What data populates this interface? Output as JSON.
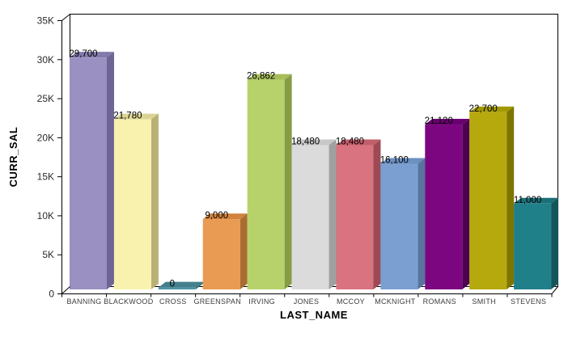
{
  "chart_data": {
    "type": "bar",
    "style": "3d",
    "title": "",
    "xlabel": "LAST_NAME",
    "ylabel": "CURR_SAL",
    "categories": [
      "BANNING",
      "BLACKWOOD",
      "CROSS",
      "GREENSPAN",
      "IRVING",
      "JONES",
      "MCCOY",
      "MCKNIGHT",
      "ROMANS",
      "SMITH",
      "STEVENS"
    ],
    "values": [
      29700,
      21780,
      0,
      9000,
      26862,
      18480,
      18480,
      16100,
      21120,
      22700,
      11000
    ],
    "value_labels": [
      "29,700",
      "21,780",
      "0",
      "9,000",
      "26,862",
      "18,480",
      "18,480",
      "16,100",
      "21,120",
      "22,700",
      "11,000"
    ],
    "ylim": [
      0,
      35000
    ],
    "yticks": [
      0,
      5000,
      10000,
      15000,
      20000,
      25000,
      30000,
      35000
    ],
    "ytick_labels": [
      "0",
      "5K",
      "10K",
      "15K",
      "20K",
      "25K",
      "30K",
      "35K"
    ],
    "grid": false,
    "legend": null,
    "background": "#ffffff",
    "axis_color": "#000000",
    "value_label_color": "#000000",
    "tick_label_color": "#2b2b2b",
    "category_label_color": "#3d3d3d",
    "bar_colors": [
      {
        "front": "#9a90c1",
        "top": "#837aab",
        "side": "#6e6595"
      },
      {
        "front": "#f8f2ae",
        "top": "#dcd494",
        "side": "#b9b075"
      },
      {
        "front": "#4f93a3",
        "top": "#447f8d",
        "side": "#3a707c"
      },
      {
        "front": "#e99b53",
        "top": "#d2843e",
        "side": "#aa6d31"
      },
      {
        "front": "#b8d26b",
        "top": "#a6bd5a",
        "side": "#879c45"
      },
      {
        "front": "#dbdbdb",
        "top": "#c7c7c7",
        "side": "#a0a0a0"
      },
      {
        "front": "#d8737f",
        "top": "#c25e6a",
        "side": "#9e4a55"
      },
      {
        "front": "#7b9fd1",
        "top": "#6d90c2",
        "side": "#56749f"
      },
      {
        "front": "#7b0680",
        "top": "#6a0070",
        "side": "#4e0052"
      },
      {
        "front": "#b6a90e",
        "top": "#a39800",
        "side": "#7e7500"
      },
      {
        "front": "#20808a",
        "top": "#1b6f78",
        "side": "#14555c"
      }
    ]
  }
}
